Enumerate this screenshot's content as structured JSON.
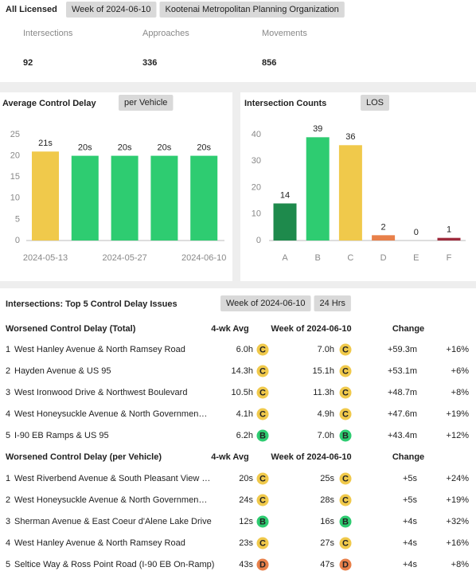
{
  "header": {
    "title": "All Licensed",
    "filters": [
      "Week of 2024-06-10",
      "Kootenai Metropolitan Planning Organization"
    ]
  },
  "kpis": [
    {
      "label": "Intersections",
      "value": 92
    },
    {
      "label": "Approaches",
      "value": 336
    },
    {
      "label": "Movements",
      "value": 856
    }
  ],
  "charts": [
    {
      "type": "bar",
      "title": "Average Control Delay",
      "option": "per Vehicle",
      "categories": [
        "2024-05-13",
        null,
        "2024-05-27",
        null,
        "2024-06-10"
      ],
      "values": [
        21,
        20,
        20,
        20,
        20
      ],
      "value_labels": [
        "21s",
        "20s",
        "20s",
        "20s",
        "20s"
      ],
      "colors": [
        "#f0c94b",
        "#2ecc71",
        "#2ecc71",
        "#2ecc71",
        "#2ecc71"
      ],
      "ylim": [
        0,
        25
      ],
      "yticks": [
        0,
        5,
        10,
        15,
        20,
        25
      ]
    },
    {
      "type": "bar",
      "title": "Intersection Counts",
      "option": "LOS",
      "categories": [
        "A",
        "B",
        "C",
        "D",
        "E",
        "F"
      ],
      "values": [
        14,
        39,
        36,
        2,
        0,
        1
      ],
      "colors": [
        "#1e8a4c",
        "#2ecc71",
        "#f0c94b",
        "#e8804a",
        "#999999",
        "#9e2a3c"
      ],
      "ylim": [
        0,
        40
      ],
      "yticks": [
        0,
        10,
        20,
        30,
        40
      ]
    }
  ],
  "issues": {
    "title": "Intersections: Top 5 Control Delay Issues",
    "filters": [
      "Week of 2024-06-10",
      "24 Hrs"
    ],
    "tables": [
      {
        "columns": [
          "Worsened Control Delay (Total)",
          "4-wk Avg",
          "Week of 2024-06-10",
          "Change"
        ],
        "rows": [
          [
            1,
            "West Hanley Avenue & North Ramsey Road",
            "6.0h",
            "C",
            "7.0h",
            "C",
            "+59.3m",
            "+16%"
          ],
          [
            2,
            "Hayden Avenue & US 95",
            "14.3h",
            "C",
            "15.1h",
            "C",
            "+53.1m",
            "+6%"
          ],
          [
            3,
            "West Ironwood Drive & Northwest Boulevard",
            "10.5h",
            "C",
            "11.3h",
            "C",
            "+48.7m",
            "+8%"
          ],
          [
            4,
            "West Honeysuckle Avenue & North Governmen…",
            "4.1h",
            "C",
            "4.9h",
            "C",
            "+47.6m",
            "+19%"
          ],
          [
            5,
            "I-90 EB Ramps & US 95",
            "6.2h",
            "B",
            "7.0h",
            "B",
            "+43.4m",
            "+12%"
          ]
        ]
      },
      {
        "columns": [
          "Worsened Control Delay (per Vehicle)",
          "4-wk Avg",
          "Week of 2024-06-10",
          "Change"
        ],
        "rows": [
          [
            1,
            "West Riverbend Avenue & South Pleasant View …",
            "20s",
            "C",
            "25s",
            "C",
            "+5s",
            "+24%"
          ],
          [
            2,
            "West Honeysuckle Avenue & North Governmen…",
            "24s",
            "C",
            "28s",
            "C",
            "+5s",
            "+19%"
          ],
          [
            3,
            "Sherman Avenue & East Coeur d'Alene Lake Drive",
            "12s",
            "B",
            "16s",
            "B",
            "+4s",
            "+32%"
          ],
          [
            4,
            "West Hanley Avenue & North Ramsey Road",
            "23s",
            "C",
            "27s",
            "C",
            "+4s",
            "+16%"
          ],
          [
            5,
            "Seltice Way & Ross Point Road (I-90 EB On-Ramp)",
            "43s",
            "D",
            "47s",
            "D",
            "+4s",
            "+8%"
          ]
        ]
      }
    ]
  }
}
